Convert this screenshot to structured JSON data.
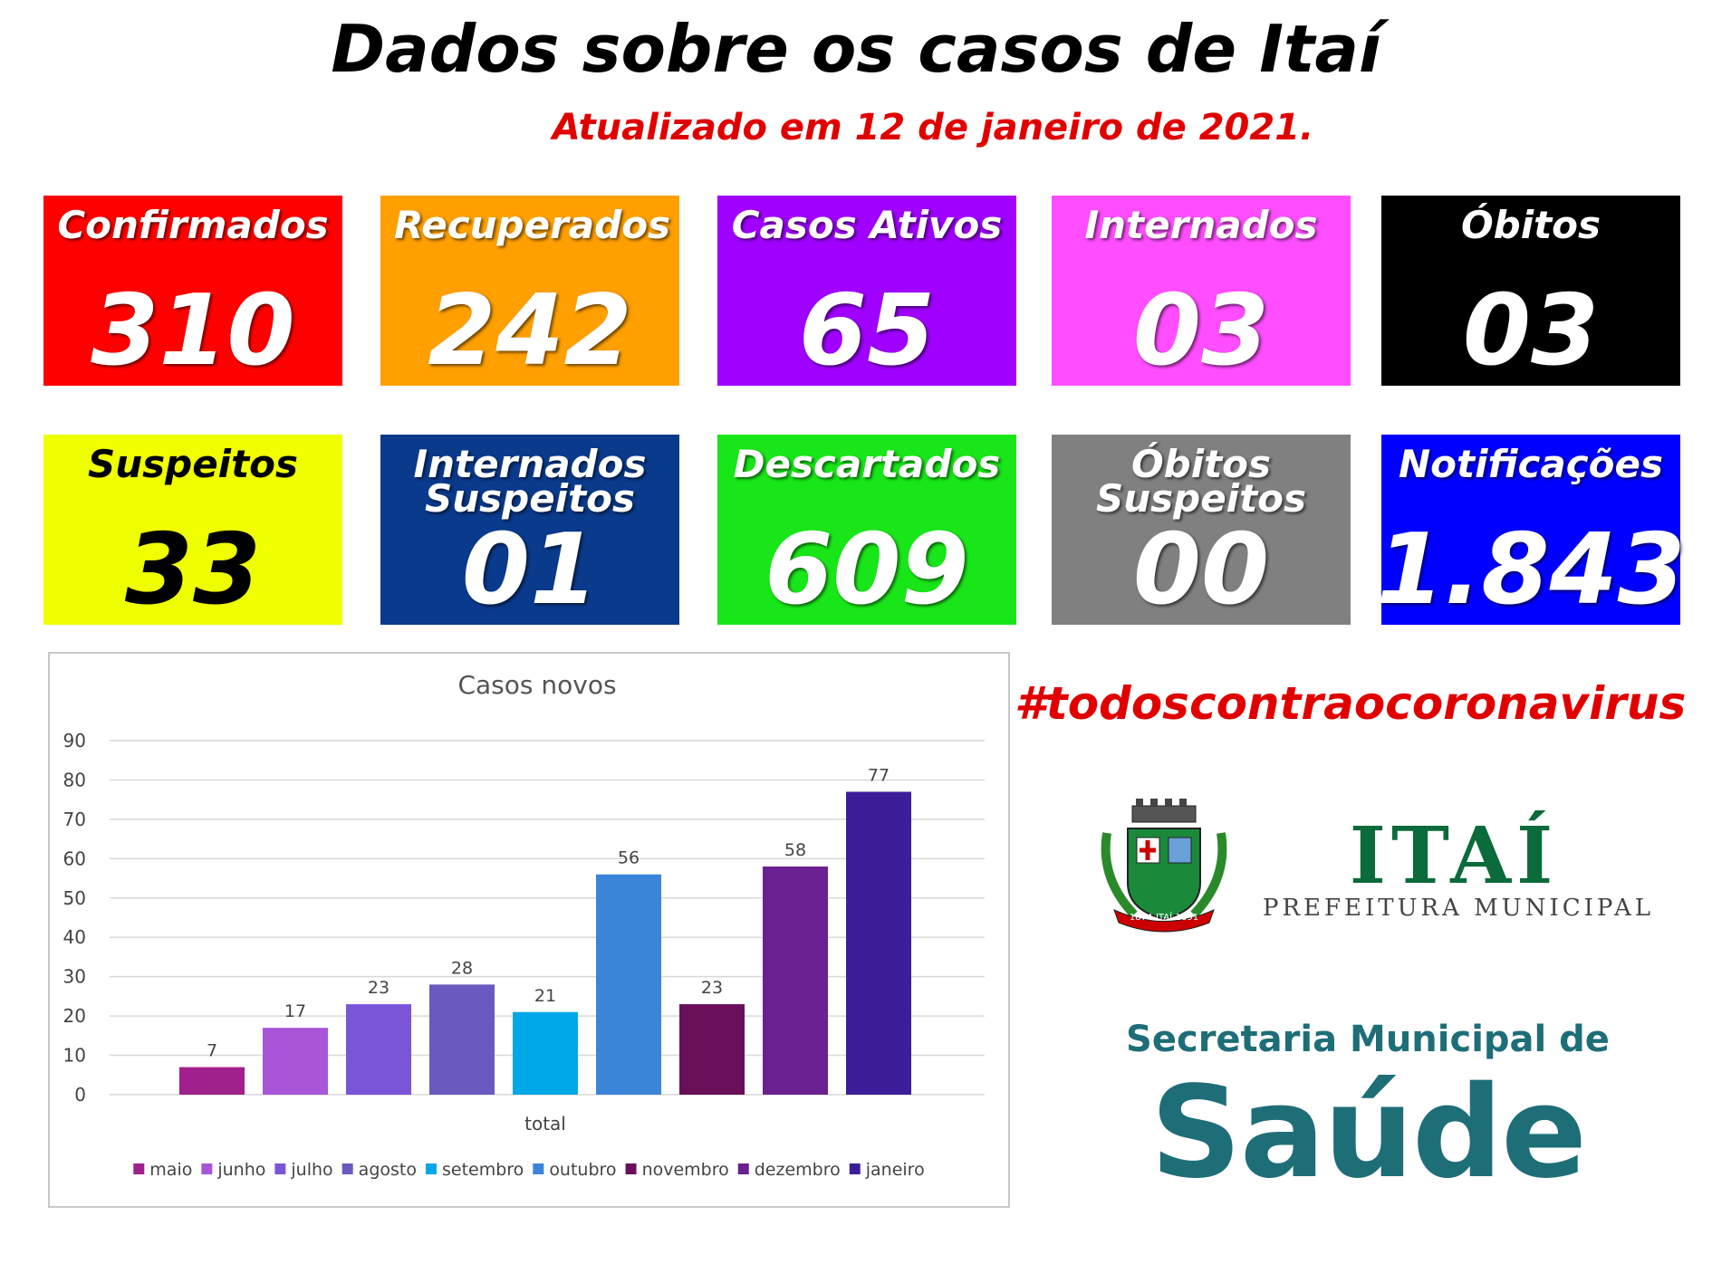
{
  "header": {
    "title": "Dados sobre os casos de Itaí",
    "subtitle": "Atualizado em 12 de janeiro de 2021."
  },
  "stats": [
    {
      "label": "Confirmados",
      "value": "310",
      "color": "#ff0000",
      "text_color": "#ffffff"
    },
    {
      "label": "Recuperados",
      "value": "242",
      "color": "#ffa000",
      "text_color": "#ffffff"
    },
    {
      "label": "Casos Ativos",
      "value": "65",
      "color": "#a000ff",
      "text_color": "#ffffff"
    },
    {
      "label": "Internados",
      "value": "03",
      "color": "#ff4dff",
      "text_color": "#ffffff"
    },
    {
      "label": "Óbitos",
      "value": "03",
      "color": "#000000",
      "text_color": "#ffffff"
    },
    {
      "label": "Suspeitos",
      "value": "33",
      "color": "#f0ff00",
      "text_color": "#000000"
    },
    {
      "label": "Internados Suspeitos",
      "value": "01",
      "color": "#0a3a8c",
      "text_color": "#ffffff"
    },
    {
      "label": "Descartados",
      "value": "609",
      "color": "#19e619",
      "text_color": "#ffffff"
    },
    {
      "label": "Óbitos Suspeitos",
      "value": "00",
      "color": "#808080",
      "text_color": "#ffffff"
    },
    {
      "label": "Notificações",
      "value": "1.843",
      "color": "#0000ff",
      "text_color": "#ffffff"
    }
  ],
  "chart_data": {
    "type": "bar",
    "title": "Casos novos",
    "categories": [
      "total"
    ],
    "series": [
      {
        "name": "maio",
        "color": "#a0208c",
        "values": [
          7
        ]
      },
      {
        "name": "junho",
        "color": "#a855d8",
        "values": [
          17
        ]
      },
      {
        "name": "julho",
        "color": "#7b55d8",
        "values": [
          23
        ]
      },
      {
        "name": "agosto",
        "color": "#6a5abf",
        "values": [
          28
        ]
      },
      {
        "name": "setembro",
        "color": "#00a8e8",
        "values": [
          21
        ]
      },
      {
        "name": "outubro",
        "color": "#3a85d8",
        "values": [
          56
        ]
      },
      {
        "name": "novembro",
        "color": "#6a0f5a",
        "values": [
          23
        ]
      },
      {
        "name": "dezembro",
        "color": "#6a2090",
        "values": [
          58
        ]
      },
      {
        "name": "janeiro",
        "color": "#3c1e9a",
        "values": [
          77
        ]
      }
    ],
    "ylim": [
      0,
      90
    ],
    "yticks": [
      0,
      10,
      20,
      30,
      40,
      50,
      60,
      70,
      80,
      90
    ],
    "grid": true,
    "legend": "bottom"
  },
  "hashtag": "#todoscontraocoronavirus",
  "logo": {
    "name": "ITAÍ",
    "subtitle": "PREFEITURA MUNICIPAL",
    "seal_text": "1874-ITAÍ-1891"
  },
  "secretaria": {
    "line1": "Secretaria Municipal de",
    "line2": "Saúde"
  }
}
